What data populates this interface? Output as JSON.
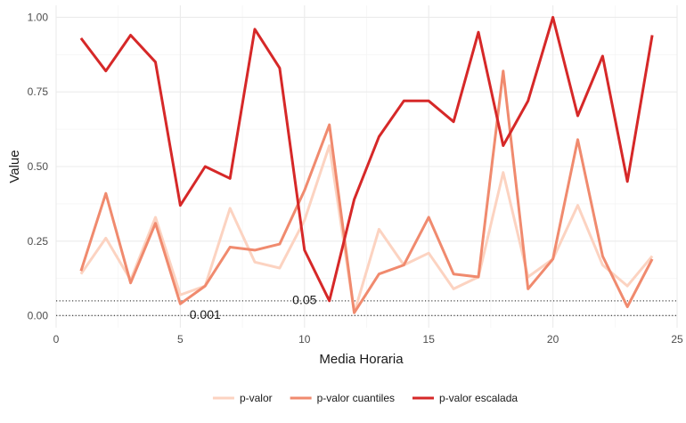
{
  "chart_data": {
    "type": "line",
    "xlabel": "Media Horaria",
    "ylabel": "Value",
    "xlim": [
      0,
      25
    ],
    "ylim": [
      -0.04,
      1.04
    ],
    "x_ticks": [
      0,
      5,
      10,
      15,
      20,
      25
    ],
    "x_tick_labels": [
      "0",
      "5",
      "10",
      "15",
      "20",
      "25"
    ],
    "y_ticks": [
      0.0,
      0.25,
      0.5,
      0.75,
      1.0
    ],
    "y_tick_labels": [
      "0.00",
      "0.25",
      "0.50",
      "0.75",
      "1.00"
    ],
    "grid": true,
    "legend_position": "bottom",
    "x": [
      1,
      2,
      3,
      4,
      5,
      6,
      7,
      8,
      9,
      10,
      11,
      12,
      13,
      14,
      15,
      16,
      17,
      18,
      19,
      20,
      21,
      22,
      23,
      24
    ],
    "series": [
      {
        "name": "p-valor",
        "color": "#fcd3c1",
        "values": [
          0.14,
          0.26,
          0.12,
          0.33,
          0.07,
          0.1,
          0.36,
          0.18,
          0.16,
          0.32,
          0.57,
          0.01,
          0.29,
          0.17,
          0.21,
          0.09,
          0.13,
          0.48,
          0.13,
          0.19,
          0.37,
          0.17,
          0.1,
          0.2
        ]
      },
      {
        "name": "p-valor cuantiles",
        "color": "#f08a6e",
        "values": [
          0.15,
          0.41,
          0.11,
          0.31,
          0.04,
          0.1,
          0.23,
          0.22,
          0.24,
          0.42,
          0.64,
          0.01,
          0.14,
          0.17,
          0.33,
          0.14,
          0.13,
          0.82,
          0.09,
          0.19,
          0.59,
          0.2,
          0.03,
          0.19
        ]
      },
      {
        "name": "p-valor escalada",
        "color": "#d62828",
        "values": [
          0.93,
          0.82,
          0.94,
          0.85,
          0.37,
          0.5,
          0.46,
          0.96,
          0.83,
          0.22,
          0.05,
          0.39,
          0.6,
          0.72,
          0.72,
          0.65,
          0.95,
          0.57,
          0.72,
          1.0,
          0.67,
          0.87,
          0.45,
          0.94
        ]
      }
    ],
    "reference_lines": [
      {
        "y": 0.05,
        "style": "dotted",
        "label": "0.05",
        "label_x": 10
      },
      {
        "y": 0.001,
        "style": "dotted",
        "label": "0.001",
        "label_x": 6
      }
    ]
  }
}
